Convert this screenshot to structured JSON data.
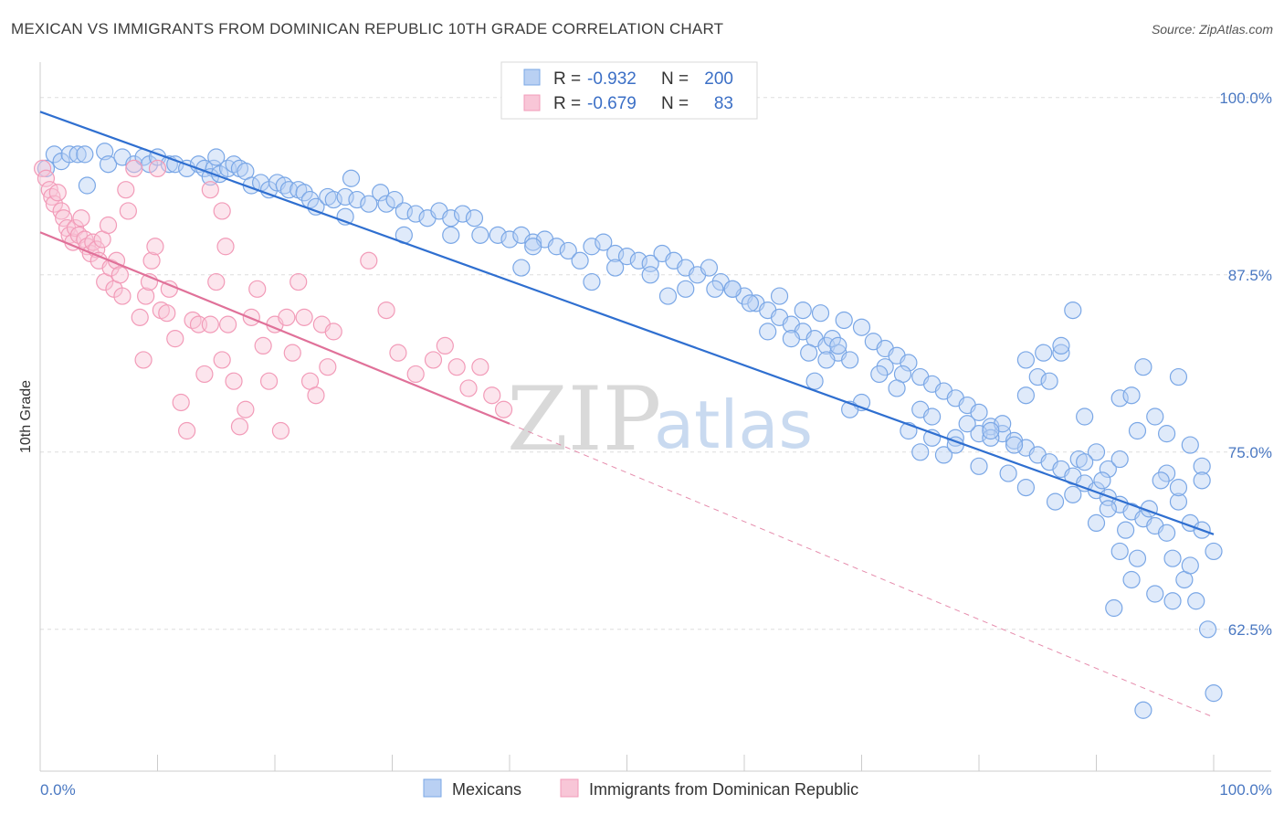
{
  "header": {
    "title": "MEXICAN VS IMMIGRANTS FROM DOMINICAN REPUBLIC 10TH GRADE CORRELATION CHART",
    "source": "Source: ZipAtlas.com"
  },
  "watermark": {
    "zip": "ZIP",
    "atlas": "atlas"
  },
  "colors": {
    "mexicans": "#7aa7e6",
    "mexicans_line": "#2f6fd0",
    "dominican": "#f29bb8",
    "dominican_line": "#e07199",
    "grid": "#dddddd",
    "axis_label": "#4a78c2"
  },
  "legend": {
    "rows": [
      {
        "r_label": "R = ",
        "r_value": "-0.932",
        "n_label": "N = ",
        "n_value": "200"
      },
      {
        "r_label": "R = ",
        "r_value": "-0.679",
        "n_label": "N = ",
        "n_value": "83"
      }
    ]
  },
  "bottom_legend": [
    "Mexicans",
    "Immigrants from Dominican Republic"
  ],
  "chart_data": {
    "type": "scatter",
    "title": "MEXICAN VS IMMIGRANTS FROM DOMINICAN REPUBLIC 10TH GRADE CORRELATION CHART",
    "xlabel": "",
    "ylabel": "10th Grade",
    "x_tick_labels": [
      "0.0%",
      "100.0%"
    ],
    "y_tick_labels": [
      "100.0%",
      "87.5%",
      "75.0%",
      "62.5%"
    ],
    "y_ticks": [
      100.0,
      87.5,
      75.0,
      62.5
    ],
    "xlim": [
      0,
      100
    ],
    "ylim": [
      52.5,
      102.5
    ],
    "grid": true,
    "legend_position": "top-center",
    "series": [
      {
        "name": "Mexicans",
        "r": -0.932,
        "n": 200,
        "trend": {
          "x": [
            0,
            100
          ],
          "y": [
            99.0,
            69.2
          ]
        },
        "points": [
          [
            0.5,
            95.0
          ],
          [
            1.2,
            96.0
          ],
          [
            1.8,
            95.5
          ],
          [
            2.5,
            96.0
          ],
          [
            3.2,
            96.0
          ],
          [
            3.8,
            96.0
          ],
          [
            4.0,
            93.8
          ],
          [
            5.5,
            96.2
          ],
          [
            5.8,
            95.3
          ],
          [
            7.0,
            95.8
          ],
          [
            8.0,
            95.3
          ],
          [
            8.8,
            95.8
          ],
          [
            9.3,
            95.3
          ],
          [
            10.0,
            95.8
          ],
          [
            11.0,
            95.3
          ],
          [
            11.5,
            95.3
          ],
          [
            12.5,
            95.0
          ],
          [
            13.5,
            95.3
          ],
          [
            14.0,
            95.0
          ],
          [
            14.8,
            95.0
          ],
          [
            14.5,
            94.4
          ],
          [
            15.3,
            94.6
          ],
          [
            15.0,
            95.8
          ],
          [
            16.0,
            95.0
          ],
          [
            16.5,
            95.3
          ],
          [
            17.0,
            95.0
          ],
          [
            17.5,
            94.8
          ],
          [
            18.0,
            93.8
          ],
          [
            18.8,
            94.0
          ],
          [
            19.5,
            93.5
          ],
          [
            20.2,
            94.0
          ],
          [
            20.8,
            93.8
          ],
          [
            21.2,
            93.5
          ],
          [
            22.0,
            93.5
          ],
          [
            22.5,
            93.3
          ],
          [
            23.0,
            92.8
          ],
          [
            23.5,
            92.3
          ],
          [
            24.5,
            93.0
          ],
          [
            25.0,
            92.8
          ],
          [
            26.0,
            93.0
          ],
          [
            26.5,
            94.3
          ],
          [
            27.0,
            92.8
          ],
          [
            28.0,
            92.5
          ],
          [
            29.0,
            93.3
          ],
          [
            29.5,
            92.5
          ],
          [
            30.2,
            92.8
          ],
          [
            31.0,
            92.0
          ],
          [
            32.0,
            91.8
          ],
          [
            33.0,
            91.5
          ],
          [
            34.0,
            92.0
          ],
          [
            35.0,
            91.5
          ],
          [
            36.0,
            91.8
          ],
          [
            37.0,
            91.5
          ],
          [
            26.0,
            91.6
          ],
          [
            39.0,
            90.3
          ],
          [
            40.0,
            90.0
          ],
          [
            41.0,
            90.3
          ],
          [
            42.0,
            89.8
          ],
          [
            43.0,
            90.0
          ],
          [
            44.0,
            89.5
          ],
          [
            45.0,
            89.2
          ],
          [
            35.0,
            90.3
          ],
          [
            37.5,
            90.3
          ],
          [
            31.0,
            90.3
          ],
          [
            41.0,
            88.0
          ],
          [
            42.0,
            89.5
          ],
          [
            46.0,
            88.5
          ],
          [
            47.0,
            89.5
          ],
          [
            48.0,
            89.8
          ],
          [
            49.0,
            89.0
          ],
          [
            50.0,
            88.8
          ],
          [
            51.0,
            88.5
          ],
          [
            52.0,
            88.3
          ],
          [
            53.0,
            89.0
          ],
          [
            54.0,
            88.5
          ],
          [
            55.0,
            88.0
          ],
          [
            56.0,
            87.5
          ],
          [
            57.0,
            88.0
          ],
          [
            58.0,
            87.0
          ],
          [
            59.0,
            86.5
          ],
          [
            60.0,
            86.0
          ],
          [
            61.0,
            85.5
          ],
          [
            62.0,
            85.0
          ],
          [
            63.0,
            84.5
          ],
          [
            64.0,
            84.0
          ],
          [
            65.0,
            83.5
          ],
          [
            66.0,
            83.0
          ],
          [
            67.0,
            82.5
          ],
          [
            68.0,
            82.0
          ],
          [
            69.0,
            81.5
          ],
          [
            49.0,
            88.0
          ],
          [
            47.0,
            87.0
          ],
          [
            52.0,
            87.5
          ],
          [
            53.5,
            86.0
          ],
          [
            55.0,
            86.5
          ],
          [
            57.5,
            86.5
          ],
          [
            59.0,
            86.5
          ],
          [
            60.5,
            85.5
          ],
          [
            63.0,
            86.0
          ],
          [
            65.0,
            85.0
          ],
          [
            66.5,
            84.8
          ],
          [
            67.5,
            83.0
          ],
          [
            68.5,
            84.3
          ],
          [
            70.0,
            83.8
          ],
          [
            71.0,
            82.8
          ],
          [
            72.0,
            82.3
          ],
          [
            73.0,
            81.8
          ],
          [
            74.0,
            81.3
          ],
          [
            75.0,
            80.3
          ],
          [
            76.0,
            79.8
          ],
          [
            77.0,
            79.3
          ],
          [
            78.0,
            78.8
          ],
          [
            79.0,
            78.3
          ],
          [
            80.0,
            77.8
          ],
          [
            81.0,
            76.8
          ],
          [
            82.0,
            76.3
          ],
          [
            83.0,
            75.8
          ],
          [
            84.0,
            75.3
          ],
          [
            85.0,
            74.8
          ],
          [
            86.0,
            74.3
          ],
          [
            87.0,
            73.8
          ],
          [
            88.0,
            73.3
          ],
          [
            89.0,
            72.8
          ],
          [
            90.0,
            72.3
          ],
          [
            91.0,
            71.8
          ],
          [
            92.0,
            71.3
          ],
          [
            93.0,
            70.8
          ],
          [
            94.0,
            70.3
          ],
          [
            95.0,
            69.8
          ],
          [
            96.0,
            69.3
          ],
          [
            72.0,
            81.0
          ],
          [
            73.5,
            80.5
          ],
          [
            75.0,
            78.0
          ],
          [
            76.0,
            76.0
          ],
          [
            77.0,
            74.8
          ],
          [
            78.0,
            76.0
          ],
          [
            80.0,
            76.3
          ],
          [
            81.0,
            76.0
          ],
          [
            82.0,
            77.0
          ],
          [
            83.0,
            75.5
          ],
          [
            84.0,
            79.0
          ],
          [
            85.0,
            80.3
          ],
          [
            86.0,
            80.0
          ],
          [
            87.0,
            82.0
          ],
          [
            88.0,
            85.0
          ],
          [
            89.0,
            77.5
          ],
          [
            90.0,
            75.0
          ],
          [
            91.0,
            73.8
          ],
          [
            92.0,
            78.8
          ],
          [
            93.0,
            79.0
          ],
          [
            94.0,
            81.0
          ],
          [
            95.0,
            77.5
          ],
          [
            96.0,
            76.3
          ],
          [
            97.0,
            80.3
          ],
          [
            98.0,
            75.5
          ],
          [
            99.0,
            74.0
          ],
          [
            84.0,
            81.5
          ],
          [
            85.5,
            82.0
          ],
          [
            87.0,
            82.5
          ],
          [
            88.5,
            74.5
          ],
          [
            90.0,
            70.0
          ],
          [
            91.0,
            71.0
          ],
          [
            92.5,
            69.5
          ],
          [
            93.5,
            67.5
          ],
          [
            95.0,
            65.0
          ],
          [
            96.5,
            64.5
          ],
          [
            97.5,
            66.0
          ],
          [
            98.5,
            64.5
          ],
          [
            99.5,
            62.5
          ],
          [
            100.0,
            58.0
          ],
          [
            92.0,
            68.0
          ],
          [
            93.0,
            66.0
          ],
          [
            94.5,
            71.0
          ],
          [
            96.0,
            73.5
          ],
          [
            97.0,
            71.5
          ],
          [
            98.0,
            70.0
          ],
          [
            99.0,
            69.5
          ],
          [
            100.0,
            68.0
          ],
          [
            95.5,
            73.0
          ],
          [
            97.0,
            72.5
          ],
          [
            74.0,
            76.5
          ],
          [
            75.0,
            75.0
          ],
          [
            76.0,
            77.5
          ],
          [
            78.0,
            75.5
          ],
          [
            79.0,
            77.0
          ],
          [
            80.0,
            74.0
          ],
          [
            81.0,
            76.5
          ],
          [
            82.5,
            73.5
          ],
          [
            84.0,
            72.5
          ],
          [
            86.5,
            71.5
          ],
          [
            96.5,
            67.5
          ],
          [
            91.5,
            64.0
          ],
          [
            98.0,
            67.0
          ],
          [
            99.0,
            73.0
          ],
          [
            94.0,
            56.8
          ],
          [
            92.0,
            74.5
          ],
          [
            93.5,
            76.5
          ],
          [
            90.5,
            73.0
          ],
          [
            89.0,
            74.3
          ],
          [
            88.0,
            72.0
          ],
          [
            66.0,
            80.0
          ],
          [
            68.0,
            82.5
          ],
          [
            70.0,
            78.5
          ],
          [
            71.5,
            80.5
          ],
          [
            73.0,
            79.5
          ],
          [
            62.0,
            83.5
          ],
          [
            64.0,
            83.0
          ],
          [
            65.5,
            82.0
          ],
          [
            67.0,
            81.5
          ],
          [
            69.0,
            78.0
          ]
        ]
      },
      {
        "name": "Immigrants from Dominican Republic",
        "r": -0.679,
        "n": 83,
        "trend": {
          "x": [
            0,
            40
          ],
          "y": [
            90.5,
            77.0
          ],
          "dashed_extension": {
            "x": [
              40,
              100
            ],
            "y": [
              77.0,
              56.3
            ]
          }
        },
        "points": [
          [
            0.2,
            95.0
          ],
          [
            0.5,
            94.3
          ],
          [
            0.8,
            93.5
          ],
          [
            1.0,
            93.0
          ],
          [
            1.2,
            92.5
          ],
          [
            1.5,
            93.3
          ],
          [
            1.8,
            92.0
          ],
          [
            2.0,
            91.5
          ],
          [
            2.3,
            90.8
          ],
          [
            2.5,
            90.3
          ],
          [
            2.8,
            89.8
          ],
          [
            3.0,
            90.8
          ],
          [
            3.3,
            90.3
          ],
          [
            3.5,
            91.5
          ],
          [
            3.8,
            90.0
          ],
          [
            4.0,
            89.5
          ],
          [
            4.3,
            89.0
          ],
          [
            4.5,
            89.8
          ],
          [
            4.8,
            89.3
          ],
          [
            5.0,
            88.5
          ],
          [
            5.3,
            90.0
          ],
          [
            5.5,
            87.0
          ],
          [
            5.8,
            91.0
          ],
          [
            6.0,
            88.0
          ],
          [
            6.3,
            86.5
          ],
          [
            6.5,
            88.5
          ],
          [
            6.8,
            87.5
          ],
          [
            7.0,
            86.0
          ],
          [
            7.3,
            93.5
          ],
          [
            7.5,
            92.0
          ],
          [
            8.0,
            95.0
          ],
          [
            8.5,
            84.5
          ],
          [
            8.8,
            81.5
          ],
          [
            9.0,
            86.0
          ],
          [
            9.3,
            87.0
          ],
          [
            9.5,
            88.5
          ],
          [
            9.8,
            89.5
          ],
          [
            10.0,
            95.0
          ],
          [
            10.3,
            85.0
          ],
          [
            10.8,
            84.8
          ],
          [
            11.0,
            86.5
          ],
          [
            11.5,
            83.0
          ],
          [
            12.0,
            78.5
          ],
          [
            12.5,
            76.5
          ],
          [
            13.0,
            84.3
          ],
          [
            13.5,
            84.0
          ],
          [
            14.0,
            80.5
          ],
          [
            14.5,
            84.0
          ],
          [
            15.0,
            87.0
          ],
          [
            15.5,
            81.5
          ],
          [
            16.0,
            84.0
          ],
          [
            16.5,
            80.0
          ],
          [
            17.0,
            76.8
          ],
          [
            17.5,
            78.0
          ],
          [
            18.0,
            84.5
          ],
          [
            18.5,
            86.5
          ],
          [
            19.0,
            82.5
          ],
          [
            19.5,
            80.0
          ],
          [
            20.0,
            84.0
          ],
          [
            20.5,
            76.5
          ],
          [
            21.0,
            84.5
          ],
          [
            21.5,
            82.0
          ],
          [
            22.0,
            87.0
          ],
          [
            22.5,
            84.5
          ],
          [
            23.0,
            80.0
          ],
          [
            23.5,
            79.0
          ],
          [
            24.0,
            84.0
          ],
          [
            24.5,
            81.0
          ],
          [
            25.0,
            83.5
          ],
          [
            28.0,
            88.5
          ],
          [
            29.5,
            85.0
          ],
          [
            30.5,
            82.0
          ],
          [
            32.0,
            80.5
          ],
          [
            33.5,
            81.5
          ],
          [
            34.5,
            82.5
          ],
          [
            35.5,
            81.0
          ],
          [
            36.5,
            79.5
          ],
          [
            37.5,
            81.0
          ],
          [
            38.5,
            79.0
          ],
          [
            39.5,
            78.0
          ],
          [
            14.5,
            93.5
          ],
          [
            15.5,
            92.0
          ],
          [
            15.8,
            89.5
          ]
        ]
      }
    ]
  }
}
